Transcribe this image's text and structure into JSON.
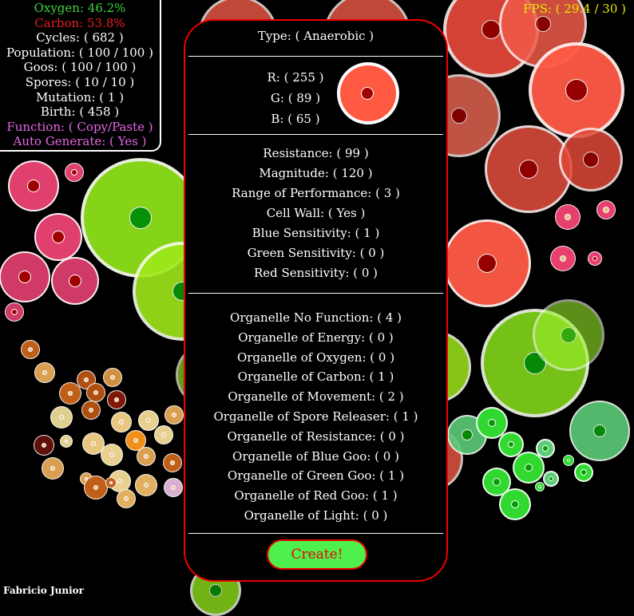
{
  "stats": {
    "oxygen": "Oxygen: 46.2%",
    "carbon": "Carbon: 53.8%",
    "cycles": "Cycles: ( 682 )",
    "population": "Population: ( 100 / 100 )",
    "goos": "Goos: ( 100 / 100 )",
    "spores": "Spores: ( 10 / 10 )",
    "mutation": "Mutation: ( 1 )",
    "birth": "Birth: ( 458 )",
    "function": "Function: ( Copy/Paste )",
    "auto_generate": "Auto Generate: ( Yes )"
  },
  "fps": "FPS: ( 29.4 / 30 )",
  "author": "Fabricio Junior",
  "panel": {
    "type": "Type: ( Anaerobic )",
    "r": "R: ( 255 )",
    "g": "G: ( 89 )",
    "b": "B: ( 65 )",
    "preview_color": "#ff5941",
    "attributes": [
      "Resistance: ( 99 )",
      "Magnitude: ( 120 )",
      "Range of Performance: ( 3 )",
      "Cell Wall: ( Yes )",
      "Blue Sensitivity: ( 1 )",
      "Green Sensitivity: ( 0 )",
      "Red Sensitivity: ( 0 )"
    ],
    "organelles": [
      "Organelle No Function: ( 4 )",
      "Organelle of Energy: ( 0 )",
      "Organelle of Oxygen: ( 0 )",
      "Organelle of Carbon: ( 1 )",
      "Organelle of Movement: ( 2 )",
      "Organelle of Spore Releaser: ( 1 )",
      "Organelle of Resistance: ( 0 )",
      "Organelle of Blue Goo: ( 0 )",
      "Organelle of Green Goo: ( 1 )",
      "Organelle of Red Goo: ( 1 )",
      "Organelle of Light: ( 0 )"
    ],
    "create_label": "Create!"
  },
  "colors": {
    "oxygen": "#3fd23f",
    "carbon": "#e81e1e",
    "magenta_text": "#e866e8",
    "fps": "#e8e800",
    "panel_border": "#ee0000",
    "create_bg": "#4ef04e"
  }
}
